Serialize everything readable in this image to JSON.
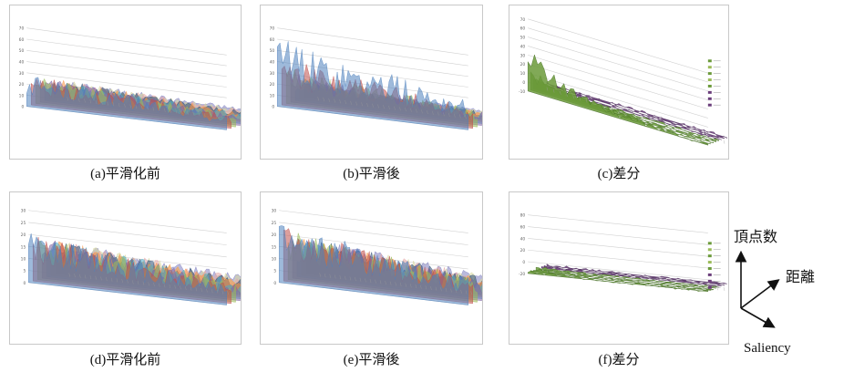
{
  "captions": [
    "(a)平滑化前",
    "(b)平滑後",
    "(c)差分",
    "(d)平滑化前",
    "(e)平滑後",
    "(f)差分"
  ],
  "axis_key": {
    "vertical": "頂点数",
    "depth": "距離",
    "horizontal": "Saliency"
  },
  "colors": {
    "panel_border": "#c8c8c8",
    "grid": "#d0d0d0",
    "surface_green": "#6b9a3a",
    "surface_purple": "#6a3d7a",
    "series_palette": [
      "#4f81bd",
      "#c0504d",
      "#9bbb59",
      "#8064a2",
      "#4bacc6",
      "#f79646",
      "#2c4d75",
      "#e6a8a8",
      "#d9d9a0",
      "#7f7fbf"
    ]
  },
  "chart_data": [
    {
      "type": "area",
      "panel": "a",
      "title": "",
      "xlabel": "",
      "ylabel": "",
      "ylim": [
        0,
        70
      ],
      "y_ticks": [
        0,
        10,
        20,
        30,
        40,
        50,
        60,
        70
      ],
      "grid": true,
      "legend": "none",
      "series_count": 10,
      "peak_profile": [
        30,
        28,
        26,
        24,
        22,
        20,
        18,
        16,
        14,
        12
      ]
    },
    {
      "type": "area",
      "panel": "b",
      "title": "",
      "xlabel": "",
      "ylabel": "",
      "ylim": [
        0,
        70
      ],
      "y_ticks": [
        0,
        10,
        20,
        30,
        40,
        50,
        60,
        70
      ],
      "grid": true,
      "legend": "none",
      "series_count": 10,
      "peak_profile": [
        65,
        45,
        35,
        28,
        22,
        18,
        15,
        12,
        10,
        8
      ]
    },
    {
      "type": "area",
      "panel": "c",
      "title": "",
      "xlabel": "",
      "ylabel": "",
      "ylim": [
        -10,
        70
      ],
      "y_ticks": [
        -10,
        0,
        10,
        20,
        30,
        40,
        50,
        60,
        70
      ],
      "grid": true,
      "legend": "right",
      "series_count": 8,
      "peak_profile": [
        55,
        30,
        15,
        8,
        4,
        2,
        1,
        0
      ]
    },
    {
      "type": "area",
      "panel": "d",
      "title": "",
      "xlabel": "",
      "ylabel": "",
      "ylim": [
        0,
        30
      ],
      "y_ticks": [
        0,
        5,
        10,
        15,
        20,
        25,
        30
      ],
      "grid": true,
      "legend": "none",
      "series_count": 10,
      "peak_profile": [
        22,
        20,
        19,
        18,
        17,
        16,
        15,
        14,
        13,
        12
      ]
    },
    {
      "type": "area",
      "panel": "e",
      "title": "",
      "xlabel": "",
      "ylabel": "",
      "ylim": [
        0,
        30
      ],
      "y_ticks": [
        0,
        5,
        10,
        15,
        20,
        25,
        30
      ],
      "grid": true,
      "legend": "none",
      "series_count": 10,
      "peak_profile": [
        27,
        24,
        22,
        20,
        18,
        17,
        16,
        15,
        14,
        13
      ]
    },
    {
      "type": "area",
      "panel": "f",
      "title": "",
      "xlabel": "",
      "ylabel": "",
      "ylim": [
        -20,
        80
      ],
      "y_ticks": [
        -20,
        0,
        20,
        40,
        60,
        80
      ],
      "grid": true,
      "legend": "right",
      "series_count": 8,
      "peak_profile": [
        6,
        5,
        5,
        4,
        4,
        4,
        3,
        3
      ]
    }
  ]
}
